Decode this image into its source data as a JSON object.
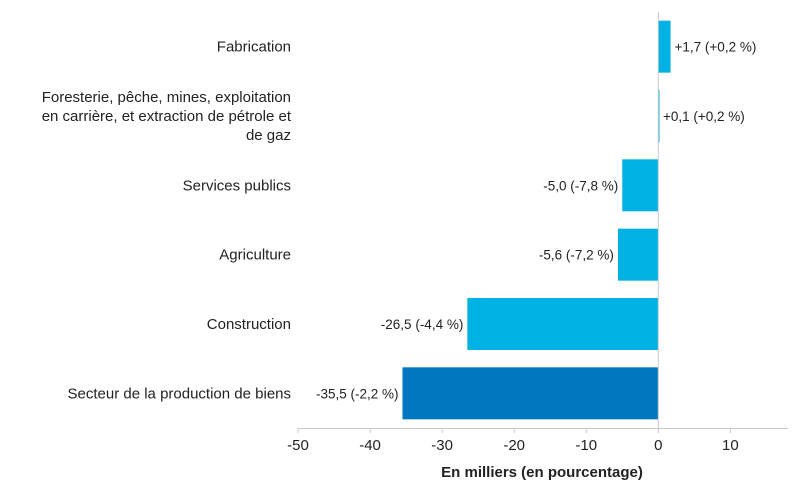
{
  "chart_data": {
    "type": "bar",
    "orientation": "horizontal",
    "categories": [
      [
        "Fabrication"
      ],
      [
        "Foresterie, pêche, mines, exploitation",
        "en carrière, et extraction de pétrole et",
        "de gaz"
      ],
      [
        "Services publics"
      ],
      [
        "Agriculture"
      ],
      [
        "Construction"
      ],
      [
        "Secteur de la production de biens"
      ]
    ],
    "values": [
      1.7,
      0.1,
      -5.0,
      -5.6,
      -26.5,
      -35.5
    ],
    "data_labels": [
      "+1,7 (+0,2 %)",
      "+0,1 (+0,2 %)",
      "-5,0 (-7,8 %)",
      "-5,6 (-7,2 %)",
      "-26,5 (-4,4 %)",
      "-35,5 (-2,2 %)"
    ],
    "highlight": [
      false,
      false,
      false,
      false,
      false,
      true
    ],
    "xlabel": "En milliers (en pourcentage)",
    "ylabel": "",
    "xlim": [
      -50,
      18
    ],
    "xticks": [
      -50,
      -40,
      -30,
      -20,
      -10,
      0,
      10
    ],
    "grid": false,
    "colors": {
      "bar": "#00b2e3",
      "highlight": "#0077c0",
      "axis": "#c8c8c8"
    }
  }
}
